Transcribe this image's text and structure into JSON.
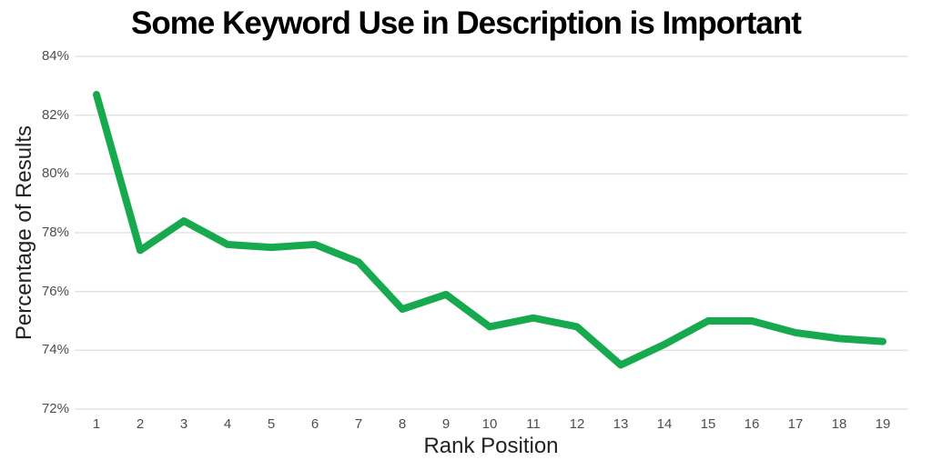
{
  "colors": {
    "background": "#ffffff",
    "title": "#000000",
    "axis_title": "#222222",
    "tick_label": "#4d4d4d",
    "grid": "#e3e3e3",
    "line": "#17a94e"
  },
  "chart_data": {
    "type": "line",
    "title": "Some Keyword Use in Description is Important",
    "xlabel": "Rank Position",
    "ylabel": "Percentage of Results",
    "categories": [
      1,
      2,
      3,
      4,
      5,
      6,
      7,
      8,
      9,
      10,
      11,
      12,
      13,
      14,
      15,
      16,
      17,
      18,
      19
    ],
    "values": [
      82.7,
      77.4,
      78.4,
      77.6,
      77.5,
      77.6,
      77.0,
      75.4,
      75.9,
      74.8,
      75.1,
      74.8,
      73.5,
      74.2,
      75.0,
      75.0,
      74.6,
      74.4,
      74.3
    ],
    "series_name": "Percentage of Results",
    "ylim": [
      72,
      84
    ],
    "ytick_step": 2,
    "yticks": [
      "84%",
      "82%",
      "80%",
      "78%",
      "76%",
      "74%",
      "72%"
    ],
    "xticks": [
      "1",
      "2",
      "3",
      "4",
      "5",
      "6",
      "7",
      "8",
      "9",
      "10",
      "11",
      "12",
      "13",
      "14",
      "15",
      "16",
      "17",
      "18",
      "19"
    ],
    "grid": "horizontal",
    "legend": "none",
    "line_width": 8
  }
}
